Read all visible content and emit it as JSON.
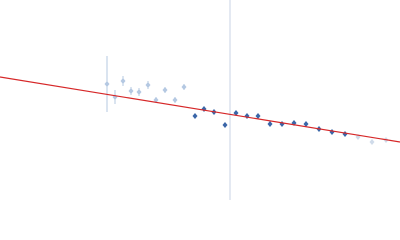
{
  "chart_data": {
    "type": "scatter",
    "xlim": [
      0,
      400
    ],
    "ylim": [
      0,
      200
    ],
    "series": [
      {
        "color": "#b4c8e2",
        "x": [
          107,
          115,
          123,
          131,
          139,
          148,
          156,
          165,
          175,
          184
        ],
        "values": [
          116,
          103,
          119,
          109,
          108,
          115,
          100,
          110,
          100,
          113
        ],
        "errors": [
          28,
          7,
          5,
          4,
          4,
          4,
          3,
          3,
          3,
          3
        ]
      },
      {
        "color": "#3a66a8",
        "x": [
          195,
          204,
          214,
          225,
          236,
          247,
          258,
          270,
          282,
          294,
          306,
          319,
          332,
          345
        ],
        "values": [
          84,
          91,
          88,
          75,
          87,
          84,
          84,
          76,
          76,
          77,
          76,
          71,
          68,
          66
        ]
      },
      {
        "color": "#d0dbea",
        "x": [
          358,
          372,
          386
        ],
        "values": [
          63,
          58,
          60
        ],
        "errors": [
          2,
          2,
          2
        ]
      }
    ],
    "fit": {
      "x": [
        0,
        400
      ],
      "values": [
        123,
        58
      ],
      "color": "#d62728"
    },
    "vlines": [
      {
        "x": 230,
        "color": "#c9d3e6"
      }
    ]
  }
}
